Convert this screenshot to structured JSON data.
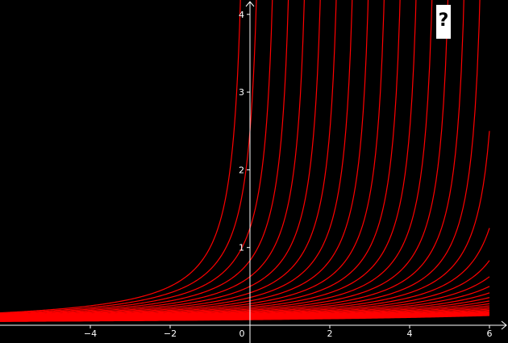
{
  "help_button": {
    "label": "?"
  },
  "colors": {
    "background": "#000000",
    "axes": "#ffffff",
    "curves": "#ff0000",
    "labels": "#ffffff"
  },
  "chart_data": {
    "type": "line",
    "title": "",
    "xlabel": "",
    "ylabel": "",
    "xlim": [
      -6.2,
      6.4
    ],
    "ylim": [
      -0.6,
      4.2
    ],
    "x_ticks": [
      -4,
      -2,
      0,
      2,
      4,
      6
    ],
    "x_tick_labels": [
      "−4",
      "−2",
      "0",
      "2",
      "4",
      "6"
    ],
    "y_ticks": [
      1,
      2,
      3,
      4
    ],
    "y_tick_labels": [
      "1",
      "2",
      "3",
      "4"
    ],
    "grid": false,
    "legend": "none",
    "family": "y = 1 / (c - x)",
    "series": [
      {
        "c": 0.0
      },
      {
        "c": 0.4
      },
      {
        "c": 0.8
      },
      {
        "c": 1.2
      },
      {
        "c": 1.6
      },
      {
        "c": 2.0
      },
      {
        "c": 2.4
      },
      {
        "c": 2.8
      },
      {
        "c": 3.2
      },
      {
        "c": 3.6
      },
      {
        "c": 4.0
      },
      {
        "c": 4.4
      },
      {
        "c": 4.8
      },
      {
        "c": 5.2
      },
      {
        "c": 5.6
      },
      {
        "c": 6.0
      },
      {
        "c": 6.4
      },
      {
        "c": 6.8
      },
      {
        "c": 7.2
      },
      {
        "c": 7.6
      },
      {
        "c": 8.0
      },
      {
        "c": 8.4
      },
      {
        "c": 8.8
      },
      {
        "c": 9.2
      },
      {
        "c": 9.6
      },
      {
        "c": 10.0
      },
      {
        "c": 10.4
      },
      {
        "c": 10.8
      },
      {
        "c": 11.2
      },
      {
        "c": 11.6
      },
      {
        "c": 12.0
      },
      {
        "c": 12.4
      },
      {
        "c": 12.8
      },
      {
        "c": 13.2
      },
      {
        "c": 13.6
      },
      {
        "c": 14.0
      }
    ]
  }
}
